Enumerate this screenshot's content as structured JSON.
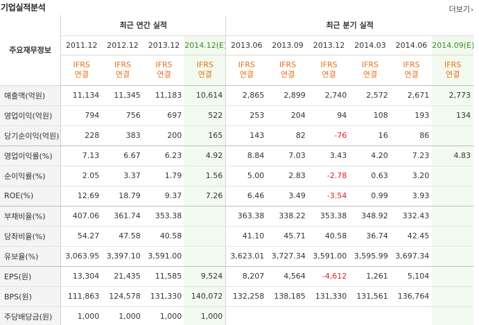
{
  "header": {
    "title": "기업실적분석",
    "more_label": "더보기",
    "more_icon": "chevron-right-icon"
  },
  "table": {
    "row_header_label": "주요재무정보",
    "groups": [
      "최근 연간 실적",
      "최근 분기 실적"
    ],
    "periods": [
      "2011.12",
      "2012.12",
      "2013.12",
      "2014.12(E)",
      "2013.06",
      "2013.09",
      "2013.12",
      "2014.03",
      "2014.06",
      "2014.09(E)"
    ],
    "ifrs": [
      {
        "line1": "IFRS",
        "line2": "연결"
      },
      {
        "line1": "IFRS",
        "line2": "연결"
      },
      {
        "line1": "IFRS",
        "line2": "연결"
      },
      {
        "line1": "IFRS",
        "line2": "연결"
      },
      {
        "line1": "IFRS",
        "line2": "연결"
      },
      {
        "line1": "IFRS",
        "line2": "연결"
      },
      {
        "line1": "IFRS",
        "line2": "연결"
      },
      {
        "line1": "IFRS",
        "line2": "연결"
      },
      {
        "line1": "IFRS",
        "line2": "연결"
      },
      {
        "line1": "IFRS",
        "line2": "연결"
      }
    ],
    "rows": [
      {
        "label": "매출액(억원)",
        "values": [
          "11,134",
          "11,345",
          "11,183",
          "10,614",
          "2,865",
          "2,899",
          "2,740",
          "2,572",
          "2,671",
          "2,773"
        ]
      },
      {
        "label": "영업이익(억원)",
        "values": [
          "794",
          "756",
          "697",
          "522",
          "253",
          "204",
          "94",
          "108",
          "193",
          "134"
        ]
      },
      {
        "label": "당기순이익(억원)",
        "values": [
          "228",
          "383",
          "200",
          "165",
          "143",
          "82",
          "-76",
          "16",
          "86",
          ""
        ]
      },
      {
        "label": "영업이익률(%)",
        "values": [
          "7.13",
          "6.67",
          "6.23",
          "4.92",
          "8.84",
          "7.03",
          "3.43",
          "4.20",
          "7.23",
          "4.83"
        ]
      },
      {
        "label": "순이익률(%)",
        "values": [
          "2.05",
          "3.37",
          "1.79",
          "1.56",
          "5.00",
          "2.83",
          "-2.78",
          "0.63",
          "3.20",
          ""
        ]
      },
      {
        "label": "ROE(%)",
        "values": [
          "12.69",
          "18.79",
          "9.37",
          "7.26",
          "6.46",
          "3.49",
          "-3.54",
          "0.99",
          "3.93",
          ""
        ]
      },
      {
        "label": "부채비율(%)",
        "values": [
          "407.06",
          "361.74",
          "353.38",
          "",
          "363.38",
          "338.22",
          "353.38",
          "348.92",
          "332.43",
          ""
        ]
      },
      {
        "label": "당좌비율(%)",
        "values": [
          "54.27",
          "47.58",
          "40.58",
          "",
          "41.10",
          "45.71",
          "40.58",
          "36.74",
          "42.45",
          ""
        ]
      },
      {
        "label": "유보율(%)",
        "values": [
          "3,063.95",
          "3,397.10",
          "3,591.00",
          "",
          "3,623.01",
          "3,727.34",
          "3,591.00",
          "3,595.99",
          "3,697.34",
          ""
        ]
      },
      {
        "label": "EPS(원)",
        "values": [
          "13,304",
          "21,435",
          "11,585",
          "9,524",
          "8,207",
          "4,564",
          "-4,612",
          "1,261",
          "5,104",
          ""
        ]
      },
      {
        "label": "BPS(원)",
        "values": [
          "111,863",
          "124,578",
          "131,330",
          "140,072",
          "132,258",
          "138,185",
          "131,330",
          "131,561",
          "136,764",
          ""
        ]
      },
      {
        "label": "주당배당금(원)",
        "values": [
          "1,000",
          "1,000",
          "1,000",
          "1,000",
          "",
          "",
          "",
          "",
          "",
          ""
        ]
      }
    ],
    "colors": {
      "ifrs_text": "#e8701a",
      "estimate_bg": "#f2f9ee",
      "estimate_text": "#3a8a2a",
      "negative_text": "#e02020",
      "label_bg": "#f4f4f4"
    }
  }
}
